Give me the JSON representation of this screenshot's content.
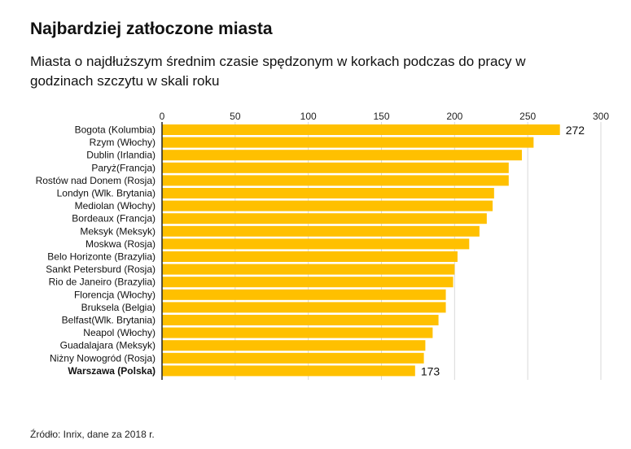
{
  "title": "Najbardziej zatłoczone miasta",
  "subtitle": "Miasta o najdłuższym średnim czasie spędzonym w korkach podczas do pracy w godzinach szczytu w skali roku",
  "source": "Źródło: Inrix, dane za 2018 r.",
  "colors": {
    "bar": "#FFC000",
    "grid": "#d9d9d9",
    "axis": "#222222"
  },
  "chart_data": {
    "type": "bar",
    "orientation": "horizontal",
    "title": "Najbardziej zatłoczone miasta",
    "xlabel": "",
    "ylabel": "",
    "xlim": [
      0,
      300
    ],
    "ticks": [
      0,
      50,
      100,
      150,
      200,
      250,
      300
    ],
    "grid": true,
    "categories": [
      "Bogota (Kolumbia)",
      "Rzym (Włochy)",
      "Dublin (Irlandia)",
      "Paryż(Francja)",
      "Rostów nad Donem (Rosja)",
      "Londyn (Wlk. Brytania)",
      "Mediolan (Włochy)",
      "Bordeaux (Francja)",
      "Meksyk (Meksyk)",
      "Moskwa (Rosja)",
      "Belo Horizonte (Brazylia)",
      "Sankt Petersburd (Rosja)",
      "Rio de Janeiro (Brazylia)",
      "Florencja (Włochy)",
      "Bruksela (Belgia)",
      "Belfast(Wlk. Brytania)",
      "Neapol (Włochy)",
      "Guadalajara (Meksyk)",
      "Niżny Nowogród (Rosja)",
      "Warszawa (Polska)"
    ],
    "values": [
      272,
      254,
      246,
      237,
      237,
      227,
      226,
      222,
      217,
      210,
      202,
      200,
      199,
      194,
      194,
      189,
      185,
      180,
      179,
      173
    ],
    "highlight": "Warszawa (Polska)",
    "value_labels": [
      {
        "category": "Bogota (Kolumbia)",
        "text": "272"
      },
      {
        "category": "Warszawa (Polska)",
        "text": "173"
      }
    ]
  }
}
